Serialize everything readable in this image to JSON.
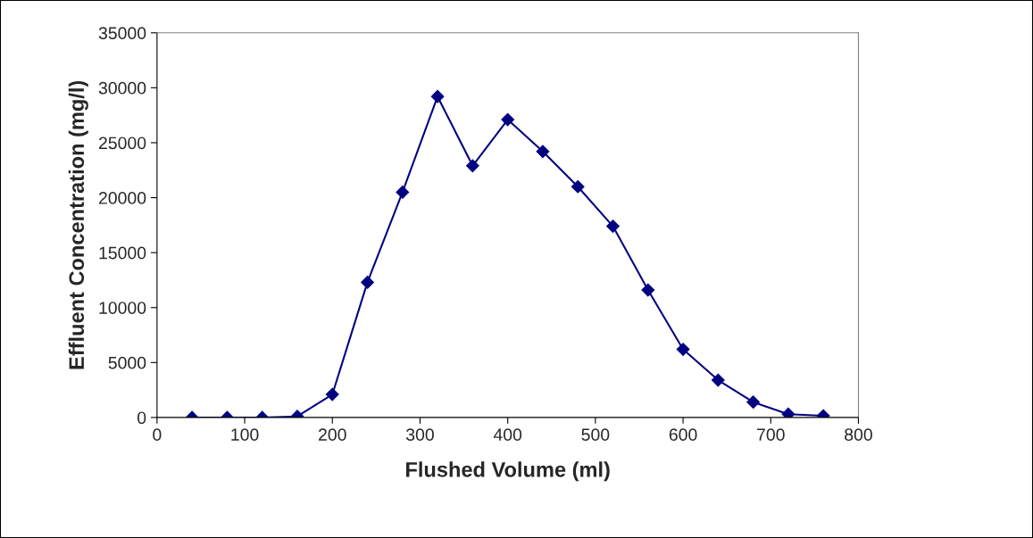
{
  "chart_data": {
    "type": "line",
    "xlabel": "Flushed Volume (ml)",
    "ylabel": "Effluent Concentration (mg/l)",
    "x": [
      40,
      80,
      120,
      160,
      200,
      240,
      280,
      320,
      360,
      400,
      440,
      480,
      520,
      560,
      600,
      640,
      680,
      720,
      760
    ],
    "series": [
      {
        "color": "#000080",
        "values": [
          0,
          0,
          0,
          100,
          2100,
          12300,
          20500,
          29200,
          22900,
          27100,
          24200,
          21000,
          17400,
          11600,
          6200,
          3400,
          1400,
          300,
          150
        ]
      }
    ],
    "xlim": [
      0,
      800
    ],
    "xticks": [
      0,
      100,
      200,
      300,
      400,
      500,
      600,
      700,
      800
    ],
    "ylim": [
      0,
      35000
    ],
    "yticks": [
      0,
      5000,
      10000,
      15000,
      20000,
      25000,
      30000,
      35000
    ],
    "marker": "diamond",
    "line_style": "solid",
    "grid": false,
    "legend": false
  }
}
